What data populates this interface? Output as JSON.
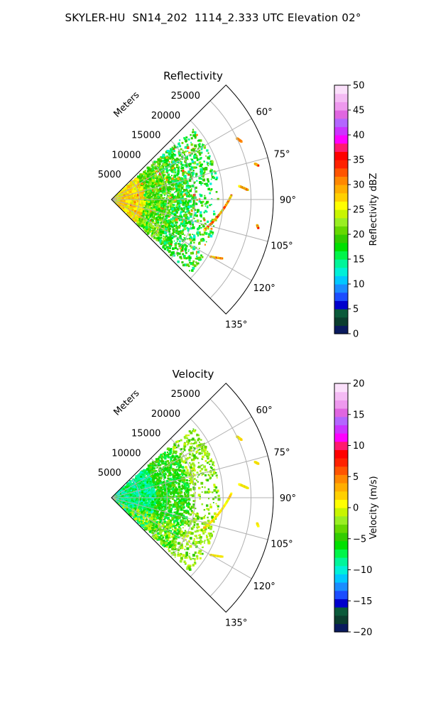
{
  "figure": {
    "title": "SKYLER-HU  SN14_202  1114_2.333 UTC Elevation 02°"
  },
  "chart_data": [
    {
      "type": "heatmap",
      "subtype": "polar-sector-ppi",
      "title": "Reflectivity",
      "radial_label": "Meters",
      "radial_ticks": [
        5000,
        10000,
        15000,
        20000,
        25000
      ],
      "radial_tick_labels": [
        "5000",
        "10000",
        "15000",
        "20000",
        "25000"
      ],
      "rlim": [
        0,
        29000
      ],
      "azimuth_range_deg": [
        45,
        135
      ],
      "azimuth_ticks_deg": [
        60,
        75,
        90,
        105,
        120,
        135
      ],
      "azimuth_tick_labels": [
        "60°",
        "75°",
        "90°",
        "105°",
        "120°",
        "135°"
      ],
      "grid": true,
      "colorbar": {
        "label": "Reflectivity dBZ",
        "range": [
          0,
          50
        ],
        "ticks": [
          0,
          5,
          10,
          15,
          20,
          25,
          30,
          35,
          40,
          45,
          50
        ],
        "tick_labels": [
          "0",
          "5",
          "10",
          "15",
          "20",
          "25",
          "30",
          "35",
          "40",
          "45",
          "50"
        ],
        "colors": [
          "#0a1a5e",
          "#0b3d2e",
          "#0b5a3a",
          "#0000cc",
          "#1b4dff",
          "#1a8cff",
          "#00c8ff",
          "#00f0d8",
          "#00f59a",
          "#00f54a",
          "#00e000",
          "#33cc00",
          "#66d800",
          "#99ee22",
          "#c8f500",
          "#ffff00",
          "#ffd000",
          "#ffae00",
          "#ff8800",
          "#ff5500",
          "#ff2200",
          "#ff0000",
          "#ff1a6e",
          "#ff00ff",
          "#cc33ff",
          "#b366ff",
          "#e066e0",
          "#ee99ee",
          "#f4bbf4",
          "#fbe0fb"
        ]
      },
      "description_fields": {
        "near_range_dominant": "yellow-orange (~25-30 dBZ)",
        "mid_range_dominant": "green (~15-22 dBZ)",
        "far_features": "linear echoes near 90°-120° up to ~40 dBZ"
      }
    },
    {
      "type": "heatmap",
      "subtype": "polar-sector-ppi",
      "title": "Velocity",
      "radial_label": "Meters",
      "radial_ticks": [
        5000,
        10000,
        15000,
        20000,
        25000
      ],
      "radial_tick_labels": [
        "5000",
        "10000",
        "15000",
        "20000",
        "25000"
      ],
      "rlim": [
        0,
        29000
      ],
      "azimuth_range_deg": [
        45,
        135
      ],
      "azimuth_ticks_deg": [
        60,
        75,
        90,
        105,
        120,
        135
      ],
      "azimuth_tick_labels": [
        "60°",
        "75°",
        "90°",
        "105°",
        "120°",
        "135°"
      ],
      "grid": true,
      "colorbar": {
        "label": "Velocity (m/s)",
        "range": [
          -20,
          20
        ],
        "ticks": [
          -20,
          -15,
          -10,
          -5,
          0,
          5,
          10,
          15,
          20
        ],
        "tick_labels": [
          "−20",
          "−15",
          "−10",
          "−5",
          "0",
          "5",
          "10",
          "15",
          "20"
        ],
        "colors": [
          "#0a1a5e",
          "#0b3d2e",
          "#0b5a3a",
          "#0000cc",
          "#1b4dff",
          "#1a8cff",
          "#00c8ff",
          "#00f0d8",
          "#00f59a",
          "#00f54a",
          "#00e000",
          "#33cc00",
          "#66d800",
          "#99ee22",
          "#c8f500",
          "#ffff00",
          "#ffd000",
          "#ffae00",
          "#ff8800",
          "#ff5500",
          "#ff2200",
          "#ff0000",
          "#ff1a6e",
          "#ff00ff",
          "#cc33ff",
          "#b366ff",
          "#e066e0",
          "#ee99ee",
          "#f4bbf4",
          "#fbe0fb"
        ]
      },
      "description_fields": {
        "near_range_dominant": "cyan-green (~-10 to -7 m/s)",
        "mid_range_dominant": "green to yellow-green (~-7 to -3 m/s)",
        "far_features": "linear echoes near 90°-120° around 0 m/s (yellow)"
      }
    }
  ]
}
